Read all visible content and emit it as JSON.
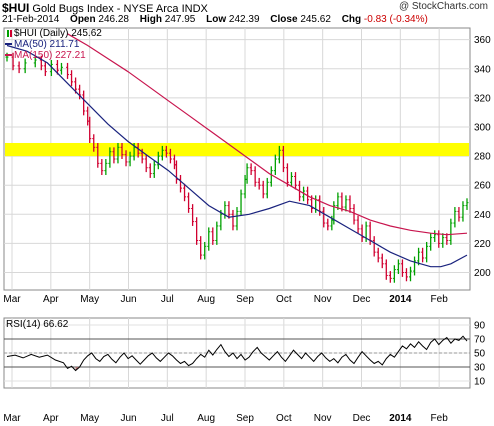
{
  "header": {
    "symbol": "$HUI",
    "name": "Gold Bugs Index - NYSE Arca INDX",
    "date": "21-Feb-2014",
    "open_label": "Open",
    "open": "246.28",
    "high_label": "High",
    "high": "247.95",
    "low_label": "Low",
    "low": "242.39",
    "close_label": "Close",
    "close": "245.62",
    "chg_label": "Chg",
    "chg": "-0.83 (-0.34%)",
    "watermark": "@ StockCharts.com"
  },
  "colors": {
    "up": "#00a000",
    "down": "#d00030",
    "ma50": "#1a237e",
    "ma150": "#c8154e",
    "band": "#ffff00",
    "rsi": "#000000"
  },
  "chart_data": [
    {
      "type": "line",
      "legend": [
        {
          "text": "$HUI (Daily) 245.62"
        },
        {
          "text": "MA(50) 211.71"
        },
        {
          "text": "MA(150) 227.21"
        }
      ],
      "x_ticks": [
        "Mar",
        "Apr",
        "May",
        "Jun",
        "Jul",
        "Aug",
        "Sep",
        "Oct",
        "Nov",
        "Dec",
        "2014",
        "Feb"
      ],
      "y_ticks": [
        200,
        220,
        240,
        260,
        280,
        300,
        320,
        340,
        360
      ],
      "ylim": [
        188,
        368
      ],
      "highlight_band": [
        280,
        289
      ],
      "price": [
        [
          0,
          348
        ],
        [
          3,
          342
        ],
        [
          6,
          340
        ],
        [
          9,
          344
        ],
        [
          14,
          346
        ],
        [
          17,
          342
        ],
        [
          19,
          338
        ],
        [
          22,
          343
        ],
        [
          25,
          339
        ],
        [
          27,
          341
        ],
        [
          30,
          336
        ],
        [
          32,
          331
        ],
        [
          34,
          326
        ],
        [
          36,
          322
        ],
        [
          38,
          311
        ],
        [
          40,
          304
        ],
        [
          41,
          292
        ],
        [
          43,
          286
        ],
        [
          45,
          275
        ],
        [
          47,
          270
        ],
        [
          49,
          275
        ],
        [
          51,
          283
        ],
        [
          53,
          278
        ],
        [
          55,
          286
        ],
        [
          57,
          281
        ],
        [
          59,
          276
        ],
        [
          61,
          280
        ],
        [
          63,
          286
        ],
        [
          65,
          282
        ],
        [
          67,
          278
        ],
        [
          69,
          272
        ],
        [
          71,
          268
        ],
        [
          73,
          274
        ],
        [
          75,
          280
        ],
        [
          77,
          284
        ],
        [
          79,
          282
        ],
        [
          81,
          278
        ],
        [
          83,
          274
        ],
        [
          84,
          264
        ],
        [
          86,
          258
        ],
        [
          88,
          252
        ],
        [
          90,
          244
        ],
        [
          92,
          235
        ],
        [
          94,
          222
        ],
        [
          96,
          212
        ],
        [
          98,
          218
        ],
        [
          100,
          228
        ],
        [
          102,
          222
        ],
        [
          104,
          232
        ],
        [
          106,
          240
        ],
        [
          108,
          246
        ],
        [
          110,
          240
        ],
        [
          112,
          232
        ],
        [
          114,
          242
        ],
        [
          116,
          254
        ],
        [
          118,
          264
        ],
        [
          119,
          272
        ],
        [
          121,
          270
        ],
        [
          123,
          262
        ],
        [
          125,
          260
        ],
        [
          127,
          254
        ],
        [
          129,
          262
        ],
        [
          131,
          270
        ],
        [
          133,
          278
        ],
        [
          135,
          284
        ],
        [
          137,
          272
        ],
        [
          139,
          262
        ],
        [
          141,
          266
        ],
        [
          143,
          260
        ],
        [
          145,
          252
        ],
        [
          147,
          256
        ],
        [
          149,
          250
        ],
        [
          151,
          244
        ],
        [
          153,
          250
        ],
        [
          155,
          242
        ],
        [
          157,
          234
        ],
        [
          159,
          232
        ],
        [
          161,
          236
        ],
        [
          162,
          246
        ],
        [
          164,
          252
        ],
        [
          166,
          245
        ],
        [
          168,
          250
        ],
        [
          170,
          244
        ],
        [
          172,
          236
        ],
        [
          174,
          230
        ],
        [
          176,
          224
        ],
        [
          178,
          232
        ],
        [
          180,
          222
        ],
        [
          182,
          214
        ],
        [
          184,
          210
        ],
        [
          186,
          206
        ],
        [
          188,
          198
        ],
        [
          190,
          196
        ],
        [
          192,
          202
        ],
        [
          194,
          206
        ],
        [
          196,
          200
        ],
        [
          198,
          197
        ],
        [
          200,
          201
        ],
        [
          202,
          208
        ],
        [
          204,
          214
        ],
        [
          206,
          210
        ],
        [
          208,
          218
        ],
        [
          210,
          224
        ],
        [
          212,
          226
        ],
        [
          214,
          220
        ],
        [
          216,
          224
        ],
        [
          218,
          222
        ],
        [
          220,
          234
        ],
        [
          222,
          242
        ],
        [
          224,
          238
        ],
        [
          226,
          246
        ],
        [
          228,
          248
        ]
      ],
      "ma50": [
        [
          0,
          356
        ],
        [
          10,
          352
        ],
        [
          20,
          344
        ],
        [
          30,
          330
        ],
        [
          40,
          316
        ],
        [
          50,
          302
        ],
        [
          60,
          290
        ],
        [
          70,
          280
        ],
        [
          80,
          270
        ],
        [
          90,
          258
        ],
        [
          100,
          246
        ],
        [
          110,
          238
        ],
        [
          120,
          240
        ],
        [
          130,
          244
        ],
        [
          140,
          249
        ],
        [
          150,
          246
        ],
        [
          160,
          238
        ],
        [
          170,
          230
        ],
        [
          180,
          222
        ],
        [
          190,
          214
        ],
        [
          200,
          208
        ],
        [
          210,
          204
        ],
        [
          215,
          204
        ],
        [
          220,
          206
        ],
        [
          228,
          212
        ]
      ],
      "ma150": [
        [
          30,
          364
        ],
        [
          40,
          356
        ],
        [
          50,
          347
        ],
        [
          60,
          338
        ],
        [
          70,
          328
        ],
        [
          80,
          318
        ],
        [
          90,
          308
        ],
        [
          100,
          298
        ],
        [
          110,
          288
        ],
        [
          120,
          278
        ],
        [
          130,
          268
        ],
        [
          140,
          260
        ],
        [
          150,
          252
        ],
        [
          160,
          246
        ],
        [
          170,
          242
        ],
        [
          180,
          236
        ],
        [
          190,
          232
        ],
        [
          200,
          229
        ],
        [
          210,
          227
        ],
        [
          218,
          226
        ],
        [
          228,
          227
        ]
      ]
    },
    {
      "type": "line",
      "legend": [
        {
          "text": "RSI(14) 66.62"
        }
      ],
      "x_ticks": [
        "Mar",
        "Apr",
        "May",
        "Jun",
        "Jul",
        "Aug",
        "Sep",
        "Oct",
        "Nov",
        "Dec",
        "2014",
        "Feb"
      ],
      "y_ticks": [
        10,
        30,
        50,
        70,
        90
      ],
      "ylim": [
        0,
        100
      ],
      "reference_lines": [
        30,
        50,
        70
      ],
      "rsi": [
        [
          0,
          45
        ],
        [
          4,
          47
        ],
        [
          8,
          43
        ],
        [
          12,
          48
        ],
        [
          16,
          44
        ],
        [
          20,
          47
        ],
        [
          24,
          40
        ],
        [
          28,
          36
        ],
        [
          30,
          28
        ],
        [
          32,
          31
        ],
        [
          34,
          25
        ],
        [
          36,
          30
        ],
        [
          38,
          40
        ],
        [
          40,
          46
        ],
        [
          42,
          50
        ],
        [
          44,
          42
        ],
        [
          46,
          38
        ],
        [
          48,
          45
        ],
        [
          50,
          48
        ],
        [
          52,
          41
        ],
        [
          54,
          36
        ],
        [
          56,
          44
        ],
        [
          58,
          50
        ],
        [
          60,
          42
        ],
        [
          62,
          46
        ],
        [
          64,
          40
        ],
        [
          66,
          34
        ],
        [
          68,
          40
        ],
        [
          70,
          46
        ],
        [
          72,
          50
        ],
        [
          74,
          43
        ],
        [
          76,
          38
        ],
        [
          78,
          44
        ],
        [
          80,
          50
        ],
        [
          82,
          46
        ],
        [
          84,
          40
        ],
        [
          86,
          35
        ],
        [
          88,
          38
        ],
        [
          90,
          32
        ],
        [
          92,
          35
        ],
        [
          94,
          42
        ],
        [
          96,
          48
        ],
        [
          98,
          44
        ],
        [
          100,
          54
        ],
        [
          102,
          47
        ],
        [
          104,
          55
        ],
        [
          106,
          62
        ],
        [
          108,
          52
        ],
        [
          110,
          45
        ],
        [
          112,
          50
        ],
        [
          114,
          42
        ],
        [
          116,
          48
        ],
        [
          118,
          40
        ],
        [
          120,
          44
        ],
        [
          122,
          52
        ],
        [
          124,
          58
        ],
        [
          126,
          50
        ],
        [
          128,
          45
        ],
        [
          130,
          40
        ],
        [
          132,
          46
        ],
        [
          134,
          52
        ],
        [
          136,
          44
        ],
        [
          138,
          38
        ],
        [
          140,
          46
        ],
        [
          142,
          54
        ],
        [
          144,
          48
        ],
        [
          146,
          42
        ],
        [
          148,
          50
        ],
        [
          150,
          44
        ],
        [
          152,
          38
        ],
        [
          154,
          45
        ],
        [
          156,
          50
        ],
        [
          158,
          43
        ],
        [
          160,
          38
        ],
        [
          162,
          42
        ],
        [
          164,
          36
        ],
        [
          166,
          44
        ],
        [
          168,
          48
        ],
        [
          170,
          40
        ],
        [
          172,
          35
        ],
        [
          174,
          44
        ],
        [
          176,
          52
        ],
        [
          178,
          46
        ],
        [
          180,
          40
        ],
        [
          182,
          35
        ],
        [
          184,
          38
        ],
        [
          186,
          33
        ],
        [
          188,
          42
        ],
        [
          190,
          48
        ],
        [
          192,
          44
        ],
        [
          194,
          52
        ],
        [
          196,
          60
        ],
        [
          198,
          56
        ],
        [
          200,
          63
        ],
        [
          202,
          58
        ],
        [
          204,
          66
        ],
        [
          206,
          60
        ],
        [
          208,
          55
        ],
        [
          210,
          65
        ],
        [
          212,
          70
        ],
        [
          214,
          62
        ],
        [
          216,
          68
        ],
        [
          218,
          72
        ],
        [
          220,
          64
        ],
        [
          222,
          70
        ],
        [
          224,
          68
        ],
        [
          226,
          74
        ],
        [
          228,
          67
        ]
      ]
    }
  ]
}
